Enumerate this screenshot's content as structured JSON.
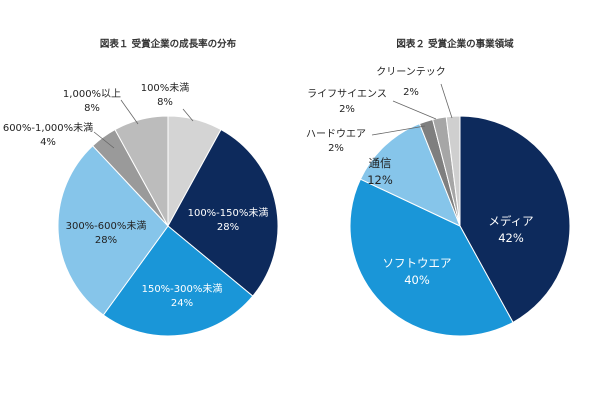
{
  "chart_data": [
    {
      "type": "pie",
      "title": "図表１ 受賞企業の成長率の分布",
      "slices": [
        {
          "label": "100%未満",
          "value": 8,
          "value_label": "8%",
          "color": "#d4d4d4"
        },
        {
          "label": "100%-150%未満",
          "value": 28,
          "value_label": "28%",
          "color": "#0d2a5c"
        },
        {
          "label": "150%-300%未満",
          "value": 24,
          "value_label": "24%",
          "color": "#1a96d8"
        },
        {
          "label": "300%-600%未満",
          "value": 28,
          "value_label": "28%",
          "color": "#86c5ea"
        },
        {
          "label": "600%-1,000%未満",
          "value": 4,
          "value_label": "4%",
          "color": "#9a9a9a"
        },
        {
          "label": "1,000%以上",
          "value": 8,
          "value_label": "8%",
          "color": "#bcbcbc"
        }
      ],
      "start": "12 o'clock",
      "direction": "clockwise"
    },
    {
      "type": "pie",
      "title": "図表２ 受賞企業の事業領域",
      "slices": [
        {
          "label": "メディア",
          "value": 42,
          "value_label": "42%",
          "color": "#0d2a5c"
        },
        {
          "label": "ソフトウエア",
          "value": 40,
          "value_label": "40%",
          "color": "#1a96d8"
        },
        {
          "label": "通信",
          "value": 12,
          "value_label": "12%",
          "color": "#86c5ea"
        },
        {
          "label": "ハードウエア",
          "value": 2,
          "value_label": "2%",
          "color": "#7f7f7f"
        },
        {
          "label": "ライフサイエンス",
          "value": 2,
          "value_label": "2%",
          "color": "#a6a6a6"
        },
        {
          "label": "クリーンテック",
          "value": 2,
          "value_label": "2%",
          "color": "#cfcfcf"
        }
      ],
      "start": "12 o'clock",
      "direction": "clockwise"
    }
  ]
}
